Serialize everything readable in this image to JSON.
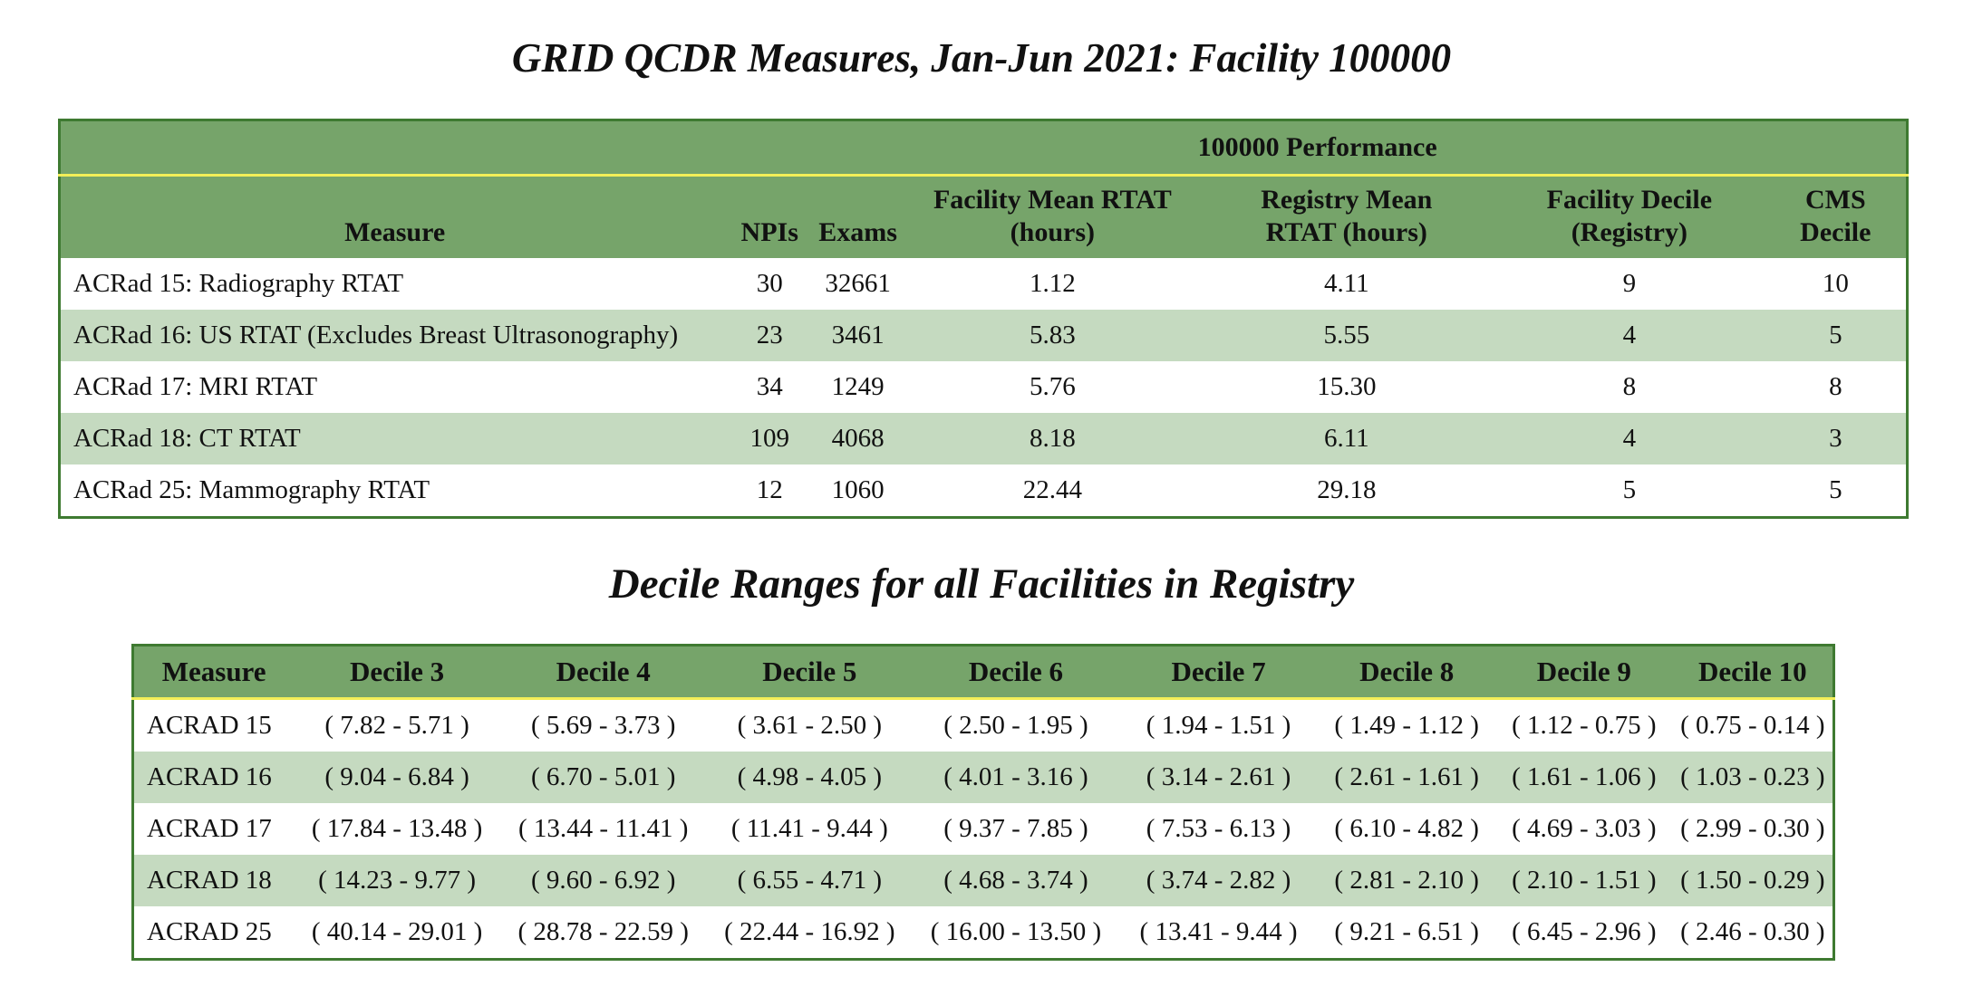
{
  "title": "GRID QCDR Measures, Jan-Jun 2021: Facility 100000",
  "subtitle": "Decile Ranges for all Facilities in Registry",
  "performance": {
    "group_header": "100000 Performance",
    "headers": {
      "measure": "Measure",
      "npis": "NPIs",
      "exams": "Exams",
      "facility_mean_1": "Facility Mean RTAT",
      "facility_mean_2": "(hours)",
      "registry_mean_1": "Registry Mean",
      "registry_mean_2": "RTAT (hours)",
      "facility_decile_1": "Facility Decile",
      "facility_decile_2": "(Registry)",
      "cms_decile_1": "CMS",
      "cms_decile_2": "Decile"
    },
    "rows": [
      {
        "measure": "ACRad 15: Radiography RTAT",
        "npis": "30",
        "exams": "32661",
        "facility_mean": "1.12",
        "registry_mean": "4.11",
        "facility_decile": "9",
        "cms_decile": "10"
      },
      {
        "measure": "ACRad 16: US RTAT (Excludes Breast Ultrasonography)",
        "npis": "23",
        "exams": "3461",
        "facility_mean": "5.83",
        "registry_mean": "5.55",
        "facility_decile": "4",
        "cms_decile": "5"
      },
      {
        "measure": "ACRad 17: MRI RTAT",
        "npis": "34",
        "exams": "1249",
        "facility_mean": "5.76",
        "registry_mean": "15.30",
        "facility_decile": "8",
        "cms_decile": "8"
      },
      {
        "measure": "ACRad 18: CT RTAT",
        "npis": "109",
        "exams": "4068",
        "facility_mean": "8.18",
        "registry_mean": "6.11",
        "facility_decile": "4",
        "cms_decile": "3"
      },
      {
        "measure": "ACRad 25: Mammography RTAT",
        "npis": "12",
        "exams": "1060",
        "facility_mean": "22.44",
        "registry_mean": "29.18",
        "facility_decile": "5",
        "cms_decile": "5"
      }
    ]
  },
  "deciles": {
    "headers": [
      "Measure",
      "Decile 3",
      "Decile 4",
      "Decile 5",
      "Decile 6",
      "Decile 7",
      "Decile 8",
      "Decile 9",
      "Decile 10"
    ],
    "rows": [
      [
        "ACRAD 15",
        "( 7.82 - 5.71 )",
        "( 5.69 - 3.73 )",
        "( 3.61 - 2.50 )",
        "( 2.50 - 1.95 )",
        "( 1.94 - 1.51 )",
        "( 1.49 - 1.12 )",
        "( 1.12 - 0.75 )",
        "( 0.75 - 0.14 )"
      ],
      [
        "ACRAD 16",
        "( 9.04 - 6.84 )",
        "( 6.70 - 5.01 )",
        "( 4.98 - 4.05 )",
        "( 4.01 - 3.16 )",
        "( 3.14 - 2.61 )",
        "( 2.61 - 1.61 )",
        "( 1.61 - 1.06 )",
        "( 1.03 - 0.23 )"
      ],
      [
        "ACRAD 17",
        "( 17.84 - 13.48 )",
        "( 13.44 - 11.41 )",
        "( 11.41 - 9.44 )",
        "( 9.37 - 7.85 )",
        "( 7.53 - 6.13 )",
        "( 6.10 - 4.82 )",
        "( 4.69 - 3.03 )",
        "( 2.99 - 0.30 )"
      ],
      [
        "ACRAD 18",
        "( 14.23 - 9.77 )",
        "( 9.60 - 6.92 )",
        "( 6.55 - 4.71 )",
        "( 4.68 - 3.74 )",
        "( 3.74 - 2.82 )",
        "( 2.81 - 2.10 )",
        "( 2.10 - 1.51 )",
        "( 1.50 - 0.29 )"
      ],
      [
        "ACRAD 25",
        "( 40.14 - 29.01 )",
        "( 28.78 - 22.59 )",
        "( 22.44 - 16.92 )",
        "( 16.00 - 13.50 )",
        "( 13.41 - 9.44 )",
        "( 9.21 - 6.51 )",
        "( 6.45 - 2.96 )",
        "( 2.46 - 0.30 )"
      ]
    ]
  },
  "colors": {
    "header_green": "#76a46a",
    "border_green": "#3e7a31",
    "row_shade": "#c5dac0",
    "header_rule": "#f2ee58"
  }
}
